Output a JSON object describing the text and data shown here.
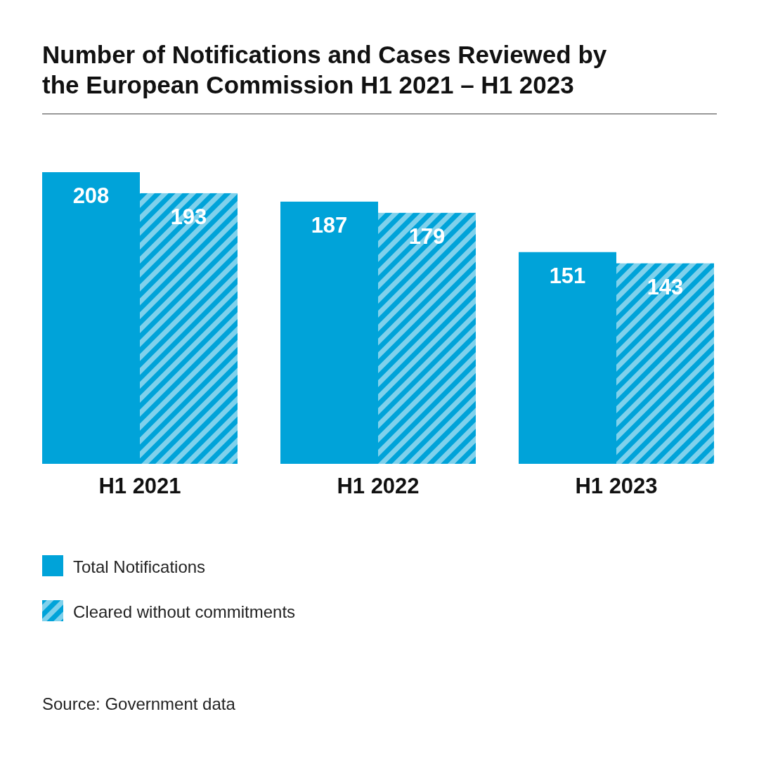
{
  "chart_data": {
    "type": "bar",
    "title": "Number of Notifications and Cases Reviewed by the European Commission H1 2021 – H1 2023",
    "categories": [
      "H1 2021",
      "H1 2022",
      "H1 2023"
    ],
    "series": [
      {
        "name": "Total Notifications",
        "color": "#00a3d9",
        "values": [
          208,
          187,
          151
        ]
      },
      {
        "name": "Cleared without commitments",
        "color": "#00a3d9",
        "values": [
          193,
          179,
          143
        ]
      }
    ],
    "data_labels": true,
    "legend": "bottom",
    "annotations": [
      "Source: Government data"
    ]
  }
}
